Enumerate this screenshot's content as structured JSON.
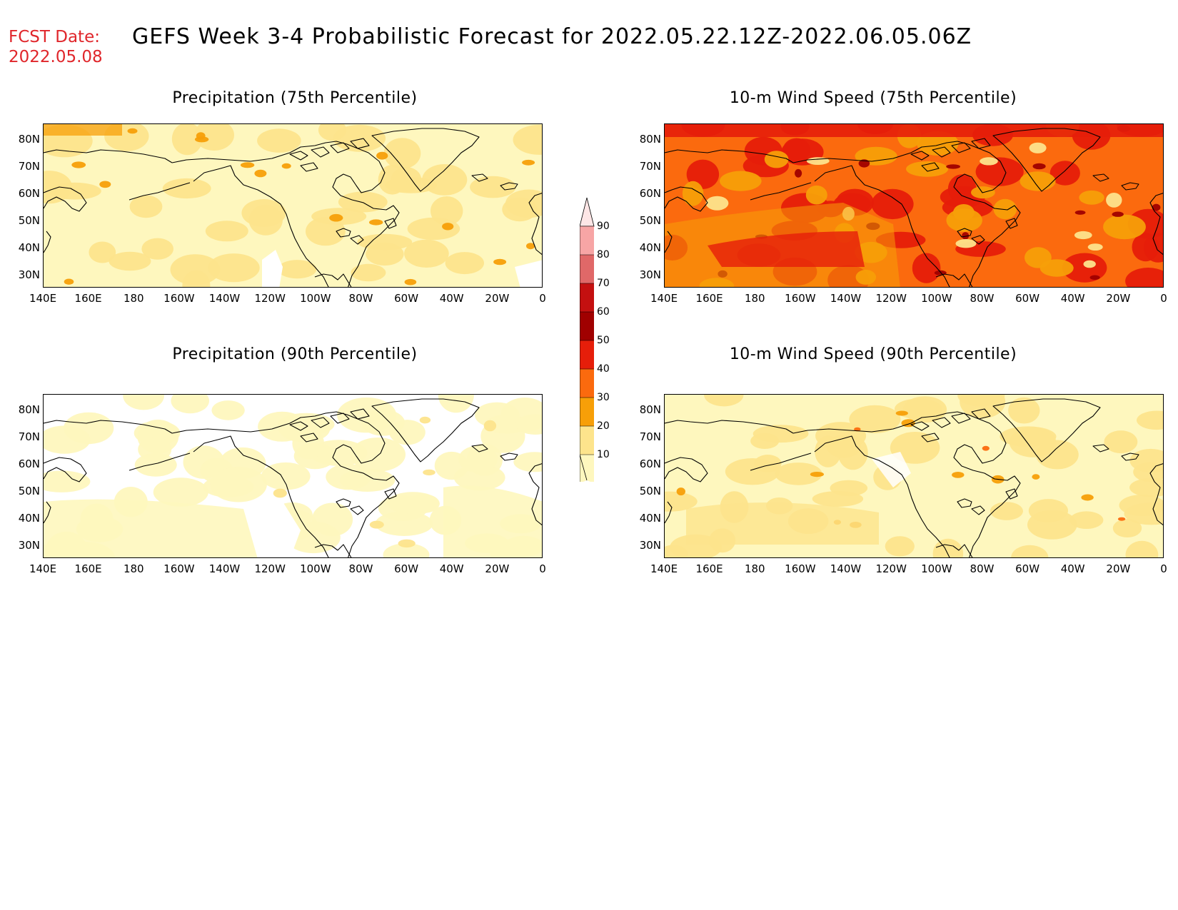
{
  "header": {
    "fcst_label": "FCST Date:",
    "fcst_date": "2022.05.08",
    "title": "GEFS Week 3-4 Probabilistic Forecast for 2022.05.22.12Z-2022.06.05.06Z"
  },
  "panels": [
    {
      "id": "precip75",
      "title": "Precipitation (75th Percentile)",
      "base_color": "#fef2aa",
      "fill_level": "light"
    },
    {
      "id": "wind75",
      "title": "10-m Wind Speed (75th Percentile)",
      "base_color": "#fb6a0e",
      "fill_level": "strong"
    },
    {
      "id": "precip90",
      "title": "Precipitation (90th Percentile)",
      "base_color": "#ffffff",
      "fill_level": "sparse"
    },
    {
      "id": "wind90",
      "title": "10-m Wind Speed (90th Percentile)",
      "base_color": "#fef2aa",
      "fill_level": "light"
    }
  ],
  "axes": {
    "lat_labels": [
      "80N",
      "70N",
      "60N",
      "50N",
      "40N",
      "30N"
    ],
    "lon_labels": [
      "140E",
      "160E",
      "180",
      "160W",
      "140W",
      "120W",
      "100W",
      "80W",
      "60W",
      "40W",
      "20W",
      "0"
    ]
  },
  "legend": {
    "levels": [
      "90",
      "80",
      "70",
      "60",
      "50",
      "40",
      "30",
      "20",
      "10"
    ],
    "colors": [
      "#f7a5a5",
      "#e06868",
      "#c41010",
      "#a00000",
      "#e61e0a",
      "#fb6a0e",
      "#f79f08",
      "#fde48c",
      "#fef7be"
    ],
    "top_color": "#fde6e6"
  }
}
